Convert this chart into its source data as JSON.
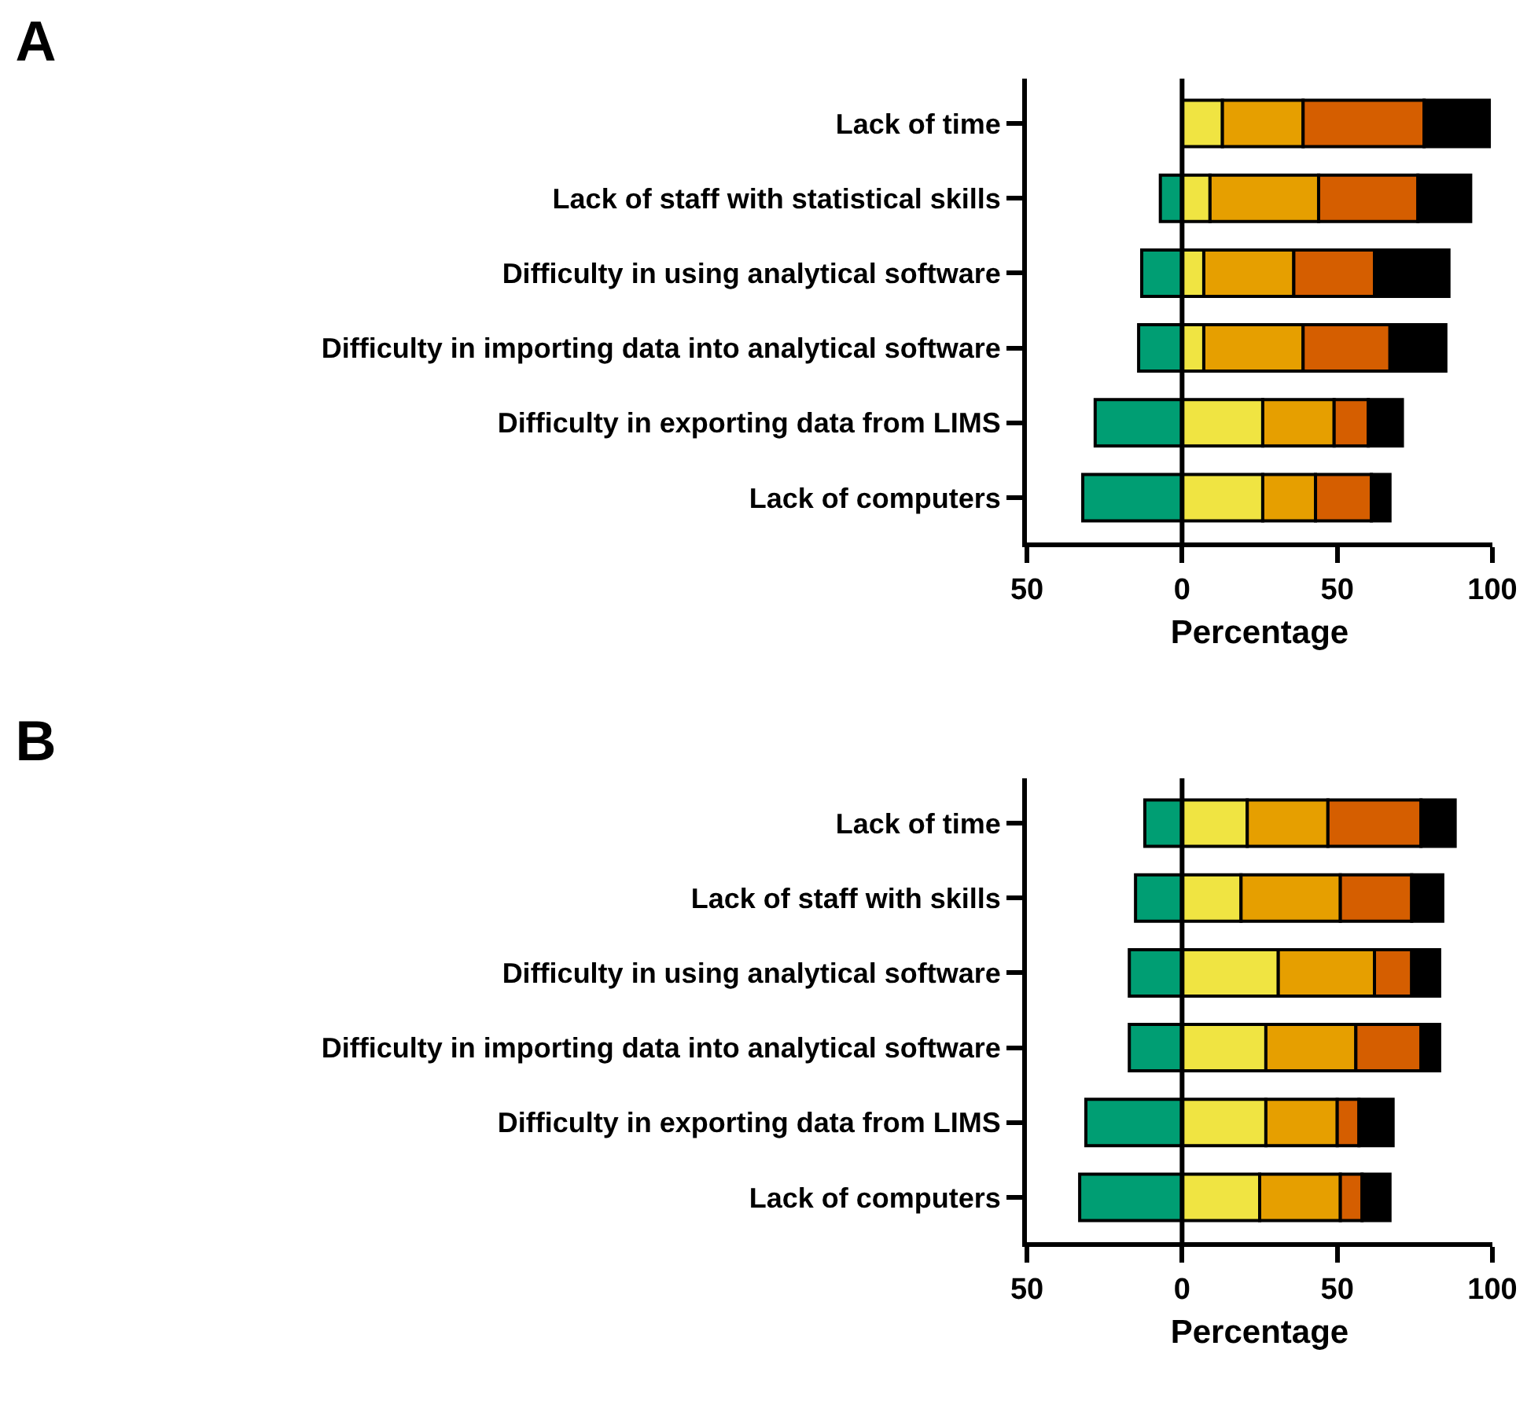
{
  "chart_data": [
    {
      "type": "bar",
      "title": "A",
      "orientation": "horizontal",
      "stacked": true,
      "xlabel": "Percentage",
      "categories": [
        "Lack of time",
        "Lack of staff with statistical skills",
        "Difficulty in using analytical software",
        "Difficulty in importing data into analytical software",
        "Difficulty in exporting data from LIMS",
        "Lack of computers"
      ],
      "series": [
        {
          "color": "#009e73",
          "values": [
            0,
            -7,
            -13,
            -14,
            -28,
            -32
          ]
        },
        {
          "color": "#f0e442",
          "values": [
            13,
            9,
            7,
            7,
            26,
            26
          ]
        },
        {
          "color": "#e69f00",
          "values": [
            26,
            35,
            29,
            32,
            23,
            17
          ]
        },
        {
          "color": "#d55e00",
          "values": [
            39,
            32,
            26,
            28,
            11,
            18
          ]
        },
        {
          "color": "#000000",
          "values": [
            21,
            17,
            24,
            18,
            11,
            6
          ]
        }
      ],
      "xlim": [
        -50,
        100
      ],
      "xticks": [
        {
          "value": -50,
          "label": "50"
        },
        0,
        50,
        100
      ],
      "ref_lines": [
        {
          "axis": "x",
          "value": 0,
          "color": "#000000"
        }
      ],
      "grid": false,
      "legend": false
    },
    {
      "type": "bar",
      "title": "B",
      "orientation": "horizontal",
      "stacked": true,
      "xlabel": "Percentage",
      "categories": [
        "Lack of time",
        "Lack of staff with skills",
        "Difficulty in using analytical software",
        "Difficulty in importing data into analytical software",
        "Difficulty in exporting data from LIMS",
        "Lack of computers"
      ],
      "series": [
        {
          "color": "#009e73",
          "values": [
            -12,
            -15,
            -17,
            -17,
            -31,
            -33
          ]
        },
        {
          "color": "#f0e442",
          "values": [
            21,
            19,
            31,
            27,
            27,
            25
          ]
        },
        {
          "color": "#e69f00",
          "values": [
            26,
            32,
            31,
            29,
            23,
            26
          ]
        },
        {
          "color": "#d55e00",
          "values": [
            30,
            23,
            12,
            21,
            7,
            7
          ]
        },
        {
          "color": "#000000",
          "values": [
            11,
            10,
            9,
            6,
            11,
            9
          ]
        }
      ],
      "xlim": [
        -50,
        100
      ],
      "xticks": [
        {
          "value": -50,
          "label": "50"
        },
        0,
        50,
        100
      ],
      "ref_lines": [
        {
          "axis": "x",
          "value": 0,
          "color": "#000000"
        }
      ],
      "grid": false,
      "legend": false
    }
  ]
}
